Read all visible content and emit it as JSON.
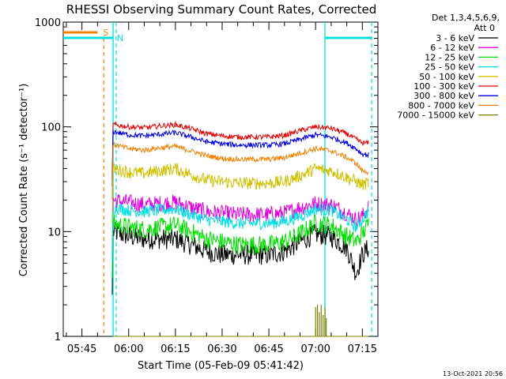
{
  "chart_data": {
    "type": "line",
    "title": "RHESSI Observing Summary Count Rates, Corrected",
    "xlabel": "Start Time (05-Feb-09 05:41:42)",
    "ylabel": "Corrected Count Rate (s⁻¹ detector⁻¹)",
    "xlim": [
      "05:39",
      "07:20"
    ],
    "ylim": [
      1,
      1000
    ],
    "yscale": "log",
    "x_ticks": [
      "05:45",
      "06:00",
      "06:15",
      "06:30",
      "06:45",
      "07:00",
      "07:15"
    ],
    "y_ticks": [
      "1",
      "10",
      "100",
      "1000"
    ],
    "legend": {
      "placement": "top-right",
      "header_lines": [
        "Det 1,3,4,5,6,9,",
        "Att 0"
      ]
    },
    "series": [
      {
        "name": "3 - 6 keV",
        "color": "#000000",
        "x": [
          "05:55",
          "06:00",
          "06:05",
          "06:10",
          "06:15",
          "06:20",
          "06:25",
          "06:30",
          "06:35",
          "06:40",
          "06:45",
          "06:50",
          "06:55",
          "07:00",
          "07:05",
          "07:10",
          "07:13",
          "07:15",
          "07:17"
        ],
        "y": [
          10,
          9,
          8.5,
          8.5,
          8.5,
          7.5,
          6.5,
          6,
          6,
          6,
          6,
          6.5,
          8,
          9.5,
          9,
          7,
          4,
          6,
          7
        ]
      },
      {
        "name": "6 - 12 keV",
        "color": "#e000e0",
        "x": [
          "05:55",
          "06:00",
          "06:05",
          "06:10",
          "06:15",
          "06:20",
          "06:25",
          "06:30",
          "06:35",
          "06:40",
          "06:45",
          "06:50",
          "06:55",
          "07:00",
          "07:05",
          "07:10",
          "07:13",
          "07:15",
          "07:17"
        ],
        "y": [
          20,
          19,
          18,
          18.5,
          19,
          17,
          15.5,
          15,
          14.5,
          14.5,
          14.5,
          15,
          17,
          18.5,
          18,
          15,
          13,
          14,
          17
        ]
      },
      {
        "name": "12 - 25 keV",
        "color": "#00e000",
        "x": [
          "05:55",
          "06:00",
          "06:05",
          "06:10",
          "06:15",
          "06:20",
          "06:25",
          "06:30",
          "06:35",
          "06:40",
          "06:45",
          "06:50",
          "06:55",
          "07:00",
          "07:05",
          "07:10",
          "07:13",
          "07:15",
          "07:17"
        ],
        "y": [
          12,
          11,
          10.5,
          11,
          11.5,
          10,
          8.5,
          8,
          7.5,
          7.5,
          7.5,
          8,
          9.5,
          12,
          11.5,
          9,
          8,
          9.5,
          12
        ]
      },
      {
        "name": "25 - 50 keV",
        "color": "#00e0e0",
        "x": [
          "05:55",
          "06:00",
          "06:05",
          "06:10",
          "06:15",
          "06:20",
          "06:25",
          "06:30",
          "06:35",
          "06:40",
          "06:45",
          "06:50",
          "06:55",
          "07:00",
          "07:05",
          "07:10",
          "07:13",
          "07:15",
          "07:17"
        ],
        "y": [
          17,
          16,
          15.5,
          16,
          16.5,
          14.5,
          13,
          12.5,
          12,
          12,
          12,
          12.5,
          14,
          16.5,
          16,
          13,
          11,
          13,
          16
        ]
      },
      {
        "name": "50 - 100 keV",
        "color": "#d0c000",
        "x": [
          "05:55",
          "06:00",
          "06:05",
          "06:10",
          "06:15",
          "06:20",
          "06:25",
          "06:30",
          "06:35",
          "06:40",
          "06:45",
          "06:50",
          "06:55",
          "07:00",
          "07:05",
          "07:10",
          "07:13",
          "07:15",
          "07:17"
        ],
        "y": [
          40,
          37,
          36,
          38,
          40,
          35,
          31,
          30,
          29,
          29,
          29,
          30,
          34,
          40,
          38,
          33,
          30,
          28,
          29
        ]
      },
      {
        "name": "100 - 300 keV",
        "color": "#e00000",
        "x": [
          "05:55",
          "06:00",
          "06:05",
          "06:10",
          "06:15",
          "06:20",
          "06:25",
          "06:30",
          "06:35",
          "06:40",
          "06:45",
          "06:50",
          "06:55",
          "07:00",
          "07:05",
          "07:10",
          "07:13",
          "07:15",
          "07:17"
        ],
        "y": [
          105,
          100,
          98,
          102,
          105,
          96,
          86,
          82,
          80,
          80,
          80,
          83,
          92,
          100,
          97,
          86,
          76,
          70,
          70
        ]
      },
      {
        "name": "300 - 800 keV",
        "color": "#0000e0",
        "x": [
          "05:55",
          "06:00",
          "06:05",
          "06:10",
          "06:15",
          "06:20",
          "06:25",
          "06:30",
          "06:35",
          "06:40",
          "06:45",
          "06:50",
          "06:55",
          "07:00",
          "07:05",
          "07:10",
          "07:13",
          "07:15",
          "07:17"
        ],
        "y": [
          90,
          84,
          82,
          85,
          88,
          80,
          72,
          69,
          67,
          67,
          67,
          69,
          76,
          84,
          80,
          70,
          62,
          55,
          54
        ]
      },
      {
        "name": "800 - 7000 keV",
        "color": "#f08000",
        "x": [
          "05:55",
          "06:00",
          "06:05",
          "06:10",
          "06:15",
          "06:20",
          "06:25",
          "06:30",
          "06:35",
          "06:40",
          "06:45",
          "06:50",
          "06:55",
          "07:00",
          "07:05",
          "07:10",
          "07:13",
          "07:15",
          "07:17"
        ],
        "y": [
          68,
          62,
          60,
          63,
          65,
          59,
          53,
          50,
          49,
          49,
          49,
          51,
          56,
          62,
          59,
          51,
          45,
          38,
          37
        ]
      },
      {
        "name": "7000 - 15000 keV",
        "color": "#808000",
        "x": [
          "05:55",
          "06:00",
          "06:05",
          "06:10",
          "06:15",
          "06:20",
          "06:25",
          "06:30",
          "06:35",
          "06:40",
          "06:45",
          "06:50",
          "06:55",
          "07:00",
          "07:05",
          "07:10",
          "07:13",
          "07:15",
          "07:17"
        ],
        "y": [
          1,
          1,
          1,
          1,
          1,
          1,
          1,
          1,
          1,
          1,
          1,
          1,
          1,
          1,
          1,
          1,
          1,
          1,
          1
        ]
      }
    ],
    "markers": {
      "saa_label": "S",
      "night_label": "N",
      "saa_color": "#f08000",
      "night_color": "#00e0e0",
      "saa_bar": [
        "05:39",
        "05:50"
      ],
      "night_bars": [
        [
          "05:39",
          "05:55"
        ],
        [
          "07:03",
          "07:18"
        ]
      ],
      "night_lines": [
        "05:55",
        "07:03"
      ],
      "night_dashed": [
        "05:56",
        "07:18"
      ],
      "saa_dashed": [
        "05:52"
      ]
    },
    "footer_date": "13-Oct-2021 20:56"
  }
}
